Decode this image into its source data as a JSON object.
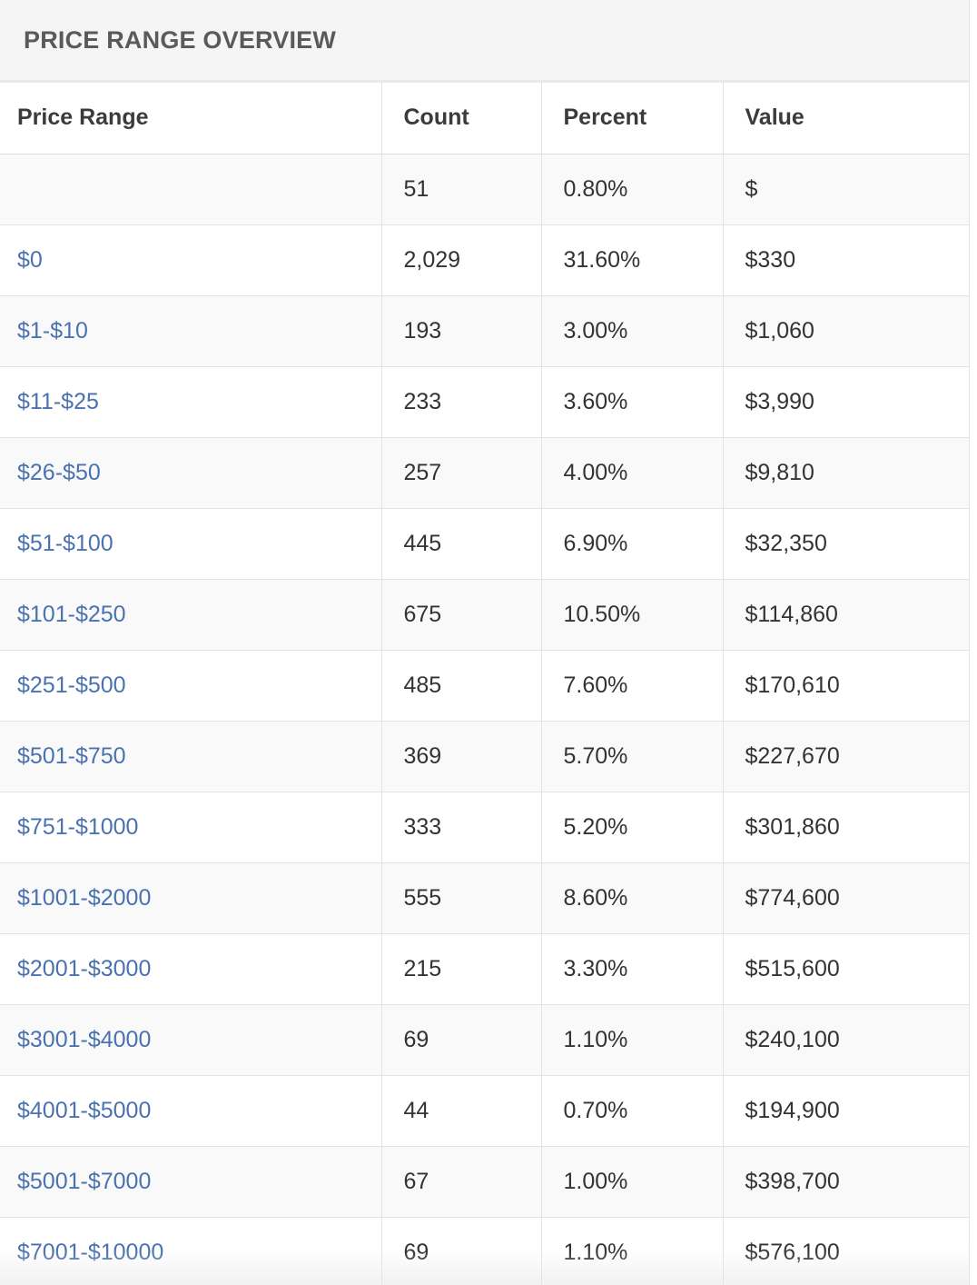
{
  "panel": {
    "title": "PRICE RANGE OVERVIEW"
  },
  "table": {
    "headers": {
      "range": "Price Range",
      "count": "Count",
      "percent": "Percent",
      "value": "Value"
    },
    "rows": [
      {
        "range": "",
        "count": "51",
        "percent": "0.80%",
        "value": "$"
      },
      {
        "range": "$0",
        "count": "2,029",
        "percent": "31.60%",
        "value": "$330"
      },
      {
        "range": "$1-$10",
        "count": "193",
        "percent": "3.00%",
        "value": "$1,060"
      },
      {
        "range": "$11-$25",
        "count": "233",
        "percent": "3.60%",
        "value": "$3,990"
      },
      {
        "range": "$26-$50",
        "count": "257",
        "percent": "4.00%",
        "value": "$9,810"
      },
      {
        "range": "$51-$100",
        "count": "445",
        "percent": "6.90%",
        "value": "$32,350"
      },
      {
        "range": "$101-$250",
        "count": "675",
        "percent": "10.50%",
        "value": "$114,860"
      },
      {
        "range": "$251-$500",
        "count": "485",
        "percent": "7.60%",
        "value": "$170,610"
      },
      {
        "range": "$501-$750",
        "count": "369",
        "percent": "5.70%",
        "value": "$227,670"
      },
      {
        "range": "$751-$1000",
        "count": "333",
        "percent": "5.20%",
        "value": "$301,860"
      },
      {
        "range": "$1001-$2000",
        "count": "555",
        "percent": "8.60%",
        "value": "$774,600"
      },
      {
        "range": "$2001-$3000",
        "count": "215",
        "percent": "3.30%",
        "value": "$515,600"
      },
      {
        "range": "$3001-$4000",
        "count": "69",
        "percent": "1.10%",
        "value": "$240,100"
      },
      {
        "range": "$4001-$5000",
        "count": "44",
        "percent": "0.70%",
        "value": "$194,900"
      },
      {
        "range": "$5001-$7000",
        "count": "67",
        "percent": "1.00%",
        "value": "$398,700"
      },
      {
        "range": "$7001-$10000",
        "count": "69",
        "percent": "1.10%",
        "value": "$576,100"
      }
    ]
  },
  "colors": {
    "link": "#4a72b0",
    "heading_bg": "#f5f5f5",
    "stripe": "#f9f9f9",
    "border": "#e3e3e3"
  }
}
